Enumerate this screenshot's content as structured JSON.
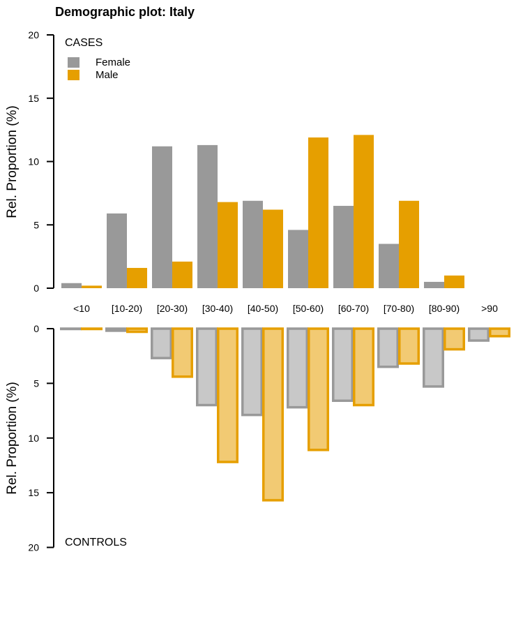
{
  "chart_data": {
    "type": "bar",
    "title": "Demographic plot: Italy",
    "categories": [
      "<10",
      "[10-20)",
      "[20-30)",
      "[30-40)",
      "[40-50)",
      "[50-60)",
      "[60-70)",
      "[70-80)",
      "[80-90)",
      ">90"
    ],
    "ylabel": "Rel. Proportion (%)",
    "yticks": [
      0,
      5,
      10,
      15,
      20
    ],
    "ylim": [
      0,
      20
    ],
    "grid": false,
    "colors": {
      "female": "#999999",
      "male": "#E69F00",
      "female_fill_controls": "#C8C8C8",
      "male_fill_controls": "#F2CA73"
    },
    "legend": {
      "title": "CASES",
      "placement": "top-left",
      "entries": [
        "Female",
        "Male"
      ]
    },
    "panels": [
      {
        "label": "CASES",
        "direction": "up",
        "series": [
          {
            "name": "Female",
            "values": [
              0.4,
              5.9,
              11.2,
              11.3,
              6.9,
              4.6,
              6.5,
              3.5,
              0.5,
              0.0
            ]
          },
          {
            "name": "Male",
            "values": [
              0.2,
              1.6,
              2.1,
              6.8,
              6.2,
              11.9,
              12.1,
              6.9,
              1.0,
              0.0
            ]
          }
        ]
      },
      {
        "label": "CONTROLS",
        "direction": "down",
        "series": [
          {
            "name": "Female",
            "values": [
              0.1,
              0.3,
              2.8,
              7.1,
              8.0,
              7.3,
              6.7,
              3.6,
              5.4,
              1.2
            ]
          },
          {
            "name": "Male",
            "values": [
              0.1,
              0.4,
              4.5,
              12.3,
              15.8,
              11.2,
              7.1,
              3.3,
              2.0,
              0.8
            ]
          }
        ]
      }
    ]
  }
}
